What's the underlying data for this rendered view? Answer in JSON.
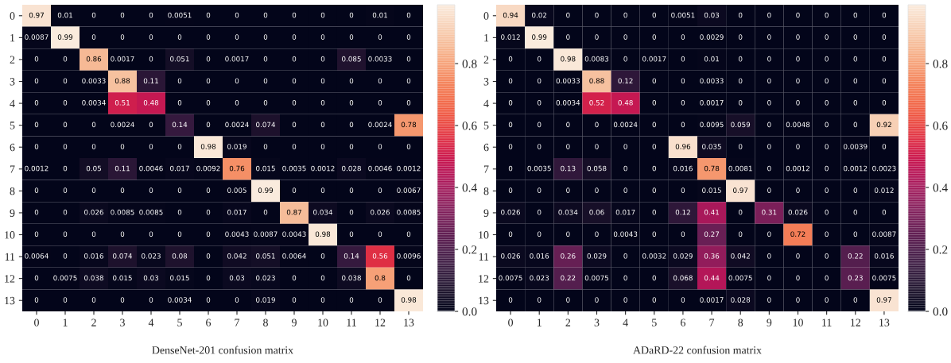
{
  "chart_data": [
    {
      "type": "heatmap",
      "title": "DenseNet-201 confusion matrix",
      "categories": [
        "0",
        "1",
        "2",
        "3",
        "4",
        "5",
        "6",
        "7",
        "8",
        "9",
        "10",
        "11",
        "12",
        "13"
      ],
      "y_categories": [
        "0",
        "1",
        "2",
        "3",
        "4",
        "5",
        "6",
        "7",
        "8",
        "9",
        "10",
        "11",
        "12",
        "13"
      ],
      "clim": [
        0,
        0.99
      ],
      "cticks": [
        {
          "value": 0,
          "label": "0.0"
        },
        {
          "value": 0.2,
          "label": "0.2"
        },
        {
          "value": 0.4,
          "label": "0.4"
        },
        {
          "value": 0.6,
          "label": "0.6"
        },
        {
          "value": 0.8,
          "label": "0.8"
        }
      ],
      "data_labels": true,
      "cells": [
        [
          0.97,
          0.01,
          0,
          0,
          0,
          0.0051,
          0,
          0,
          0,
          0,
          0,
          0,
          0.01,
          0
        ],
        [
          0.0087,
          0.99,
          0,
          0,
          0,
          0,
          0,
          0,
          0,
          0,
          0,
          0,
          0,
          0
        ],
        [
          0,
          0,
          0.86,
          0.0017,
          0,
          0.051,
          0,
          0.0017,
          0,
          0,
          0,
          0.085,
          0.0033,
          0
        ],
        [
          0,
          0,
          0.0033,
          0.88,
          0.11,
          0,
          0,
          0,
          0,
          0,
          0,
          0,
          0,
          0
        ],
        [
          0,
          0,
          0.0034,
          0.51,
          0.48,
          0,
          0,
          0,
          0,
          0,
          0,
          0,
          0,
          0
        ],
        [
          0,
          0,
          0,
          0.0024,
          0,
          0.14,
          0,
          0.0024,
          0.074,
          0,
          0,
          0,
          0.0024,
          0.78
        ],
        [
          0,
          0,
          0,
          0,
          0,
          0,
          0.98,
          0.019,
          0,
          0,
          0,
          0,
          0,
          0
        ],
        [
          0.0012,
          0,
          0.05,
          0.11,
          0.0046,
          0.017,
          0.0092,
          0.76,
          0.015,
          0.0035,
          0.0012,
          0.028,
          0.0046,
          0.0012
        ],
        [
          0,
          0,
          0,
          0,
          0,
          0,
          0,
          0.005,
          0.99,
          0,
          0,
          0,
          0,
          0.0067
        ],
        [
          0,
          0,
          0.026,
          0.0085,
          0.0085,
          0,
          0,
          0.017,
          0,
          0.87,
          0.034,
          0,
          0.026,
          0.0085
        ],
        [
          0,
          0,
          0,
          0,
          0,
          0,
          0,
          0.0043,
          0.0087,
          0.0043,
          0.98,
          0,
          0,
          0
        ],
        [
          0.0064,
          0,
          0.016,
          0.074,
          0.023,
          0.08,
          0,
          0.042,
          0.051,
          0.0064,
          0,
          0.14,
          0.56,
          0.0096
        ],
        [
          0,
          0.0075,
          0.038,
          0.015,
          0.03,
          0.015,
          0,
          0.03,
          0.023,
          0,
          0,
          0.038,
          0.8,
          0
        ],
        [
          0,
          0,
          0,
          0,
          0,
          0.0034,
          0,
          0,
          0.019,
          0,
          0,
          0,
          0,
          0.98
        ]
      ]
    },
    {
      "type": "heatmap",
      "title": "ADaRD-22 confusion matrix",
      "categories": [
        "0",
        "1",
        "2",
        "3",
        "4",
        "5",
        "6",
        "7",
        "8",
        "9",
        "10",
        "11",
        "12",
        "13"
      ],
      "y_categories": [
        "0",
        "1",
        "2",
        "3",
        "4",
        "5",
        "6",
        "7",
        "8",
        "9",
        "10",
        "11",
        "12",
        "13"
      ],
      "clim": [
        0,
        0.99
      ],
      "cticks": [
        {
          "value": 0,
          "label": "0.0"
        },
        {
          "value": 0.2,
          "label": "0.2"
        },
        {
          "value": 0.4,
          "label": "0.4"
        },
        {
          "value": 0.6,
          "label": "0.6"
        },
        {
          "value": 0.8,
          "label": "0.8"
        }
      ],
      "data_labels": true,
      "cells": [
        [
          0.94,
          0.02,
          0,
          0,
          0,
          0,
          0.0051,
          0.03,
          0,
          0,
          0,
          0,
          0,
          0
        ],
        [
          0.012,
          0.99,
          0,
          0,
          0,
          0,
          0,
          0.0029,
          0,
          0,
          0,
          0,
          0,
          0
        ],
        [
          0,
          0,
          0.98,
          0.0083,
          0,
          0.0017,
          0,
          0.01,
          0,
          0,
          0,
          0,
          0,
          0
        ],
        [
          0,
          0,
          0.0033,
          0.88,
          0.12,
          0,
          0,
          0.0033,
          0,
          0,
          0,
          0,
          0,
          0
        ],
        [
          0,
          0,
          0.0034,
          0.52,
          0.48,
          0,
          0,
          0.0017,
          0,
          0,
          0,
          0,
          0,
          0
        ],
        [
          0,
          0,
          0,
          0,
          0.0024,
          0,
          0,
          0.0095,
          0.059,
          0,
          0.0048,
          0,
          0,
          0.92
        ],
        [
          0,
          0,
          0,
          0,
          0,
          0,
          0.96,
          0.035,
          0,
          0,
          0,
          0,
          0.0039,
          0
        ],
        [
          0,
          0.0035,
          0.13,
          0.058,
          0,
          0,
          0.016,
          0.78,
          0.0081,
          0,
          0.0012,
          0,
          0.0012,
          0.0023
        ],
        [
          0,
          0,
          0,
          0,
          0,
          0,
          0,
          0.015,
          0.97,
          0,
          0,
          0,
          0,
          0.012
        ],
        [
          0.026,
          0,
          0.034,
          0.06,
          0.017,
          0,
          0.12,
          0.41,
          0,
          0.31,
          0.026,
          0,
          0,
          0
        ],
        [
          0,
          0,
          0,
          0,
          0.0043,
          0,
          0,
          0.27,
          0,
          0,
          0.72,
          0,
          0,
          0.0087
        ],
        [
          0.026,
          0.016,
          0.26,
          0.029,
          0,
          0.0032,
          0.029,
          0.36,
          0.042,
          0,
          0,
          0,
          0.22,
          0.016
        ],
        [
          0.0075,
          0.023,
          0.22,
          0.0075,
          0,
          0,
          0.068,
          0.44,
          0.0075,
          0,
          0,
          0,
          0.23,
          0.0075
        ],
        [
          0,
          0,
          0,
          0,
          0,
          0,
          0,
          0.0017,
          0.028,
          0,
          0,
          0,
          0,
          0.97
        ]
      ]
    }
  ]
}
